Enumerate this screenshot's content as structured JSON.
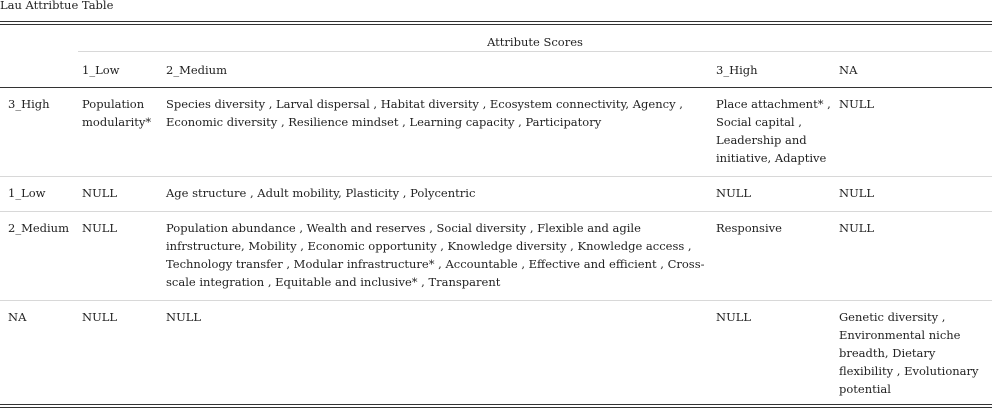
{
  "caption": "Lau Attribtue Table",
  "spanner_header": "Attribute Scores",
  "columns": [
    "",
    "1_Low",
    "2_Medium",
    "3_High",
    "NA"
  ],
  "rows": [
    {
      "label": "3_High",
      "low": "Population modularity*",
      "medium": "Species diversity , Larval dispersal , Habitat diversity , Ecosystem connectivity, Agency , Economic diversity , Resilience mindset , Learning capacity , Participatory",
      "high": "Place attachment* , Social capital , Leadership and initiative, Adaptive",
      "na": "NULL"
    },
    {
      "label": "1_Low",
      "low": "NULL",
      "medium": "Age structure , Adult mobility, Plasticity , Polycentric",
      "high": "NULL",
      "na": "NULL"
    },
    {
      "label": "2_Medium",
      "low": "NULL",
      "medium": "Population abundance , Wealth and reserves , Social diversity , Flexible and agile infrstructure, Mobility , Economic opportunity , Knowledge diversity , Knowledge access , Technology transfer , Modular infrastructure* , Accountable , Effective and efficient , Cross-scale integration , Equitable and inclusive* , Transparent",
      "high": "Responsive",
      "na": "NULL"
    },
    {
      "label": "NA",
      "low": "NULL",
      "medium": "NULL",
      "high": "NULL",
      "na": "Genetic diversity , Environmental niche breadth, Dietary flexibility , Evolutionary potential"
    }
  ]
}
